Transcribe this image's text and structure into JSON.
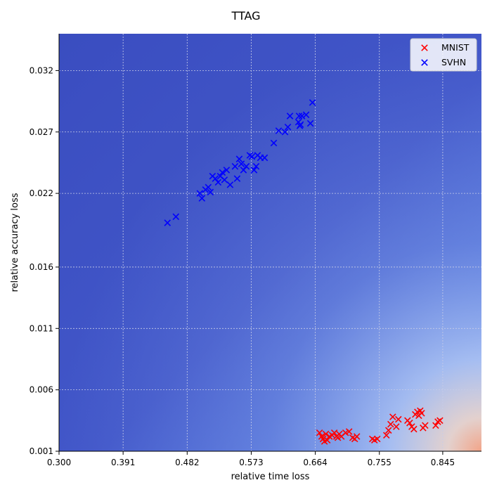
{
  "chart_data": {
    "type": "scatter",
    "title": "TTAG",
    "xlabel": "relative time loss",
    "ylabel": "relative accuracy loss",
    "xlim": [
      0.3,
      0.9
    ],
    "ylim": [
      0.001,
      0.035
    ],
    "x_ticks": [
      0.3,
      0.391,
      0.482,
      0.573,
      0.664,
      0.755,
      0.845
    ],
    "x_tick_labels": [
      "0.300",
      "0.391",
      "0.482",
      "0.573",
      "0.664",
      "0.755",
      "0.845"
    ],
    "y_ticks": [
      0.001,
      0.006,
      0.011,
      0.016,
      0.022,
      0.027,
      0.032
    ],
    "y_tick_labels": [
      "0.001",
      "0.006",
      "0.011",
      "0.016",
      "0.022",
      "0.027",
      "0.032"
    ],
    "grid": true,
    "legend_position": "top-right",
    "background": "heatmap gradient, blue (high) to red (low) near bottom-right",
    "series": [
      {
        "name": "MNIST",
        "color": "#ff0000",
        "marker": "x",
        "points": [
          [
            0.67,
            0.0025
          ],
          [
            0.673,
            0.0022
          ],
          [
            0.675,
            0.002
          ],
          [
            0.677,
            0.0018
          ],
          [
            0.679,
            0.0024
          ],
          [
            0.681,
            0.0019
          ],
          [
            0.684,
            0.0022
          ],
          [
            0.688,
            0.0023
          ],
          [
            0.691,
            0.0025
          ],
          [
            0.694,
            0.0022
          ],
          [
            0.696,
            0.0021
          ],
          [
            0.698,
            0.0024
          ],
          [
            0.701,
            0.0022
          ],
          [
            0.707,
            0.0025
          ],
          [
            0.712,
            0.0026
          ],
          [
            0.717,
            0.0021
          ],
          [
            0.72,
            0.002
          ],
          [
            0.723,
            0.0022
          ],
          [
            0.745,
            0.002
          ],
          [
            0.748,
            0.0019
          ],
          [
            0.752,
            0.002
          ],
          [
            0.765,
            0.0023
          ],
          [
            0.768,
            0.0027
          ],
          [
            0.771,
            0.0032
          ],
          [
            0.774,
            0.0038
          ],
          [
            0.779,
            0.003
          ],
          [
            0.782,
            0.0036
          ],
          [
            0.795,
            0.0035
          ],
          [
            0.798,
            0.0033
          ],
          [
            0.801,
            0.003
          ],
          [
            0.804,
            0.0028
          ],
          [
            0.806,
            0.004
          ],
          [
            0.809,
            0.0042
          ],
          [
            0.811,
            0.0039
          ],
          [
            0.813,
            0.0043
          ],
          [
            0.815,
            0.0041
          ],
          [
            0.817,
            0.0029
          ],
          [
            0.82,
            0.0031
          ],
          [
            0.835,
            0.0031
          ],
          [
            0.838,
            0.0034
          ],
          [
            0.841,
            0.0035
          ]
        ]
      },
      {
        "name": "SVHN",
        "color": "#0000ff",
        "marker": "x",
        "points": [
          [
            0.454,
            0.0196
          ],
          [
            0.466,
            0.0201
          ],
          [
            0.5,
            0.022
          ],
          [
            0.503,
            0.0216
          ],
          [
            0.508,
            0.0223
          ],
          [
            0.512,
            0.0225
          ],
          [
            0.515,
            0.0221
          ],
          [
            0.518,
            0.0234
          ],
          [
            0.522,
            0.0232
          ],
          [
            0.526,
            0.0229
          ],
          [
            0.529,
            0.0234
          ],
          [
            0.532,
            0.0237
          ],
          [
            0.535,
            0.0231
          ],
          [
            0.538,
            0.0239
          ],
          [
            0.543,
            0.0227
          ],
          [
            0.55,
            0.0242
          ],
          [
            0.553,
            0.0232
          ],
          [
            0.556,
            0.0248
          ],
          [
            0.559,
            0.0244
          ],
          [
            0.562,
            0.0239
          ],
          [
            0.566,
            0.0242
          ],
          [
            0.571,
            0.0251
          ],
          [
            0.574,
            0.025
          ],
          [
            0.577,
            0.0239
          ],
          [
            0.58,
            0.0242
          ],
          [
            0.582,
            0.0251
          ],
          [
            0.586,
            0.0249
          ],
          [
            0.592,
            0.0249
          ],
          [
            0.605,
            0.0261
          ],
          [
            0.612,
            0.0271
          ],
          [
            0.621,
            0.027
          ],
          [
            0.625,
            0.0274
          ],
          [
            0.628,
            0.0283
          ],
          [
            0.64,
            0.0278
          ],
          [
            0.642,
            0.0275
          ],
          [
            0.645,
            0.0283
          ],
          [
            0.651,
            0.0284
          ],
          [
            0.657,
            0.0277
          ],
          [
            0.66,
            0.0294
          ],
          [
            0.641,
            0.0283
          ],
          [
            0.643,
            0.0276
          ]
        ]
      }
    ]
  }
}
